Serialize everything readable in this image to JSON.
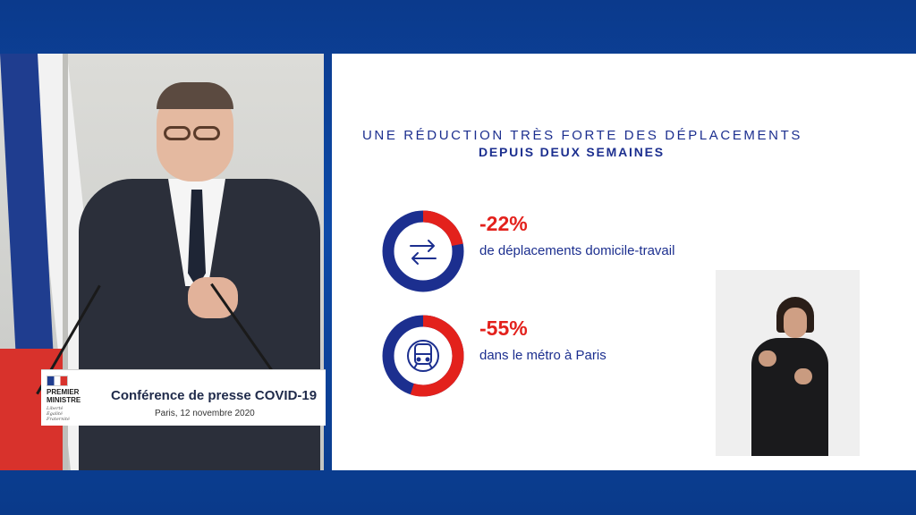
{
  "press_card": {
    "logo_line1": "PREMIER",
    "logo_line2": "MINISTRE",
    "logo_motto1": "Liberté",
    "logo_motto2": "Égalité",
    "logo_motto3": "Fraternité",
    "title": "Conférence de presse COVID-19",
    "subtitle": "Paris, 12 novembre 2020"
  },
  "slide": {
    "title_line1": "UNE RÉDUCTION TRÈS FORTE DES DÉPLACEMENTS",
    "title_line2": "DEPUIS DEUX SEMAINES",
    "stats": [
      {
        "value": "-22%",
        "fraction": 0.22,
        "label": "de déplacements domicile-travail",
        "icon": "swap-arrows-icon"
      },
      {
        "value": "-55%",
        "fraction": 0.55,
        "label": "dans le métro à Paris",
        "icon": "metro-train-icon"
      }
    ]
  },
  "colors": {
    "brand_blue": "#1c2f8f",
    "accent_red": "#e3211c",
    "background_blue": "#0d4aa8"
  }
}
